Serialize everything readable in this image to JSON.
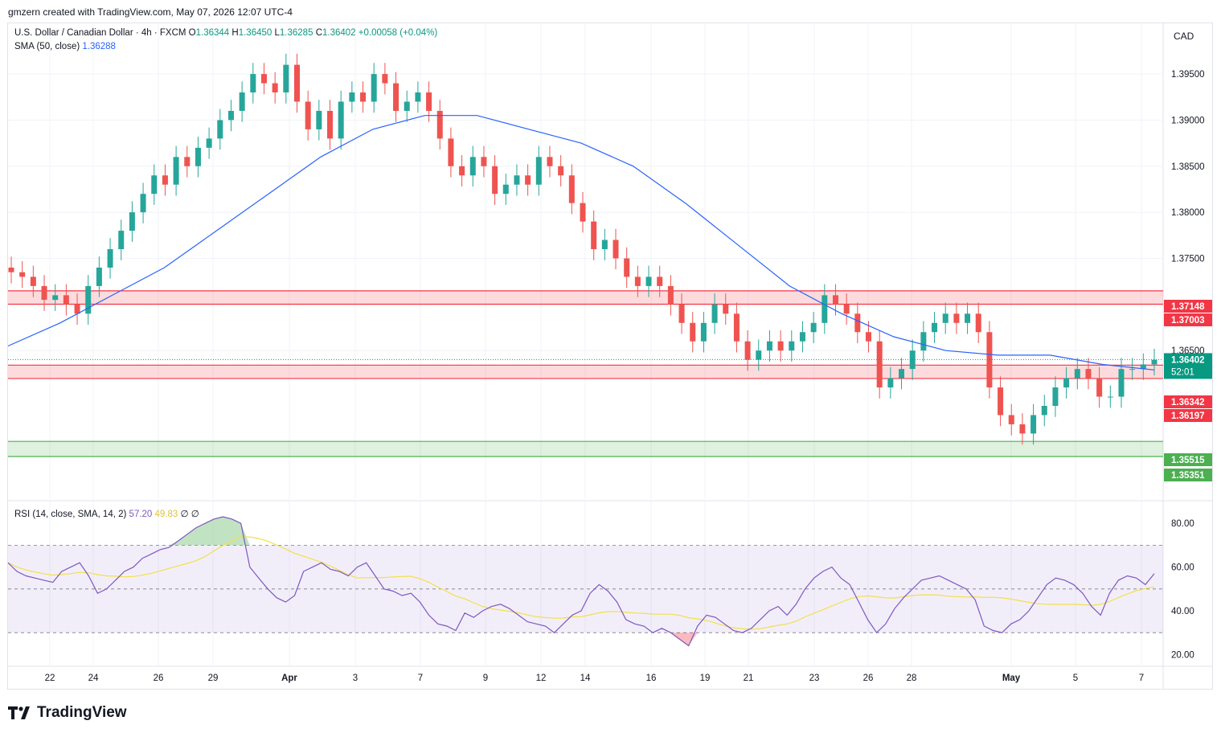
{
  "header": {
    "credit": "gmzern created with TradingView.com, May 07, 2026 12:07 UTC-4"
  },
  "legend": {
    "symbol": "U.S. Dollar / Canadian Dollar · 4h · FXCM",
    "o_label": "O",
    "o": "1.36344",
    "h_label": "H",
    "h": "1.36450",
    "l_label": "L",
    "l": "1.36285",
    "c_label": "C",
    "c": "1.36402",
    "change": "+0.00058 (+0.04%)",
    "sma_label": "SMA (50, close)",
    "sma_value": "1.36288",
    "rsi_label": "RSI (14, close, SMA, 14, 2)",
    "rsi_value": "57.20",
    "rsi_ma_value": "49.83",
    "rsi_extra1": "∅",
    "rsi_extra2": "∅"
  },
  "currency": "CAD",
  "brand": "TradingView",
  "colors": {
    "up": "#26a69a",
    "down": "#ef5350",
    "sma": "#2962ff",
    "rsi": "#7e57c2",
    "rsi_ma": "#f2e04a",
    "zone_red": "#f23645",
    "zone_green": "#4caf50"
  },
  "chart_data": {
    "type": "candlestick",
    "timeframe": "4h",
    "price_axis": {
      "ticks": [
        1.395,
        1.39,
        1.385,
        1.38,
        1.375,
        1.365
      ],
      "tick_labels": [
        "1.39500",
        "1.39000",
        "1.38500",
        "1.38000",
        "1.37500",
        "1.36500"
      ],
      "range": [
        1.3488,
        1.4005
      ]
    },
    "x_ticks": [
      "22",
      "24",
      "26",
      "29",
      "Apr",
      "3",
      "7",
      "9",
      "12",
      "14",
      "16",
      "19",
      "21",
      "23",
      "26",
      "28",
      "May",
      "5",
      "7"
    ],
    "zones": [
      {
        "kind": "resistance",
        "top": 1.37148,
        "bottom": 1.37003,
        "labels": [
          "1.37148",
          "1.37003"
        ]
      },
      {
        "kind": "resistance",
        "top": 1.36342,
        "bottom": 1.36197,
        "labels": [
          "1.36342",
          "1.36197"
        ]
      },
      {
        "kind": "support",
        "top": 1.35515,
        "bottom": 1.35351,
        "labels": [
          "1.35515",
          "1.35351"
        ]
      }
    ],
    "last_price": {
      "value": 1.36402,
      "label": "1.36402",
      "countdown": "52:01"
    },
    "close_path": [
      1.3735,
      1.373,
      1.372,
      1.3705,
      1.371,
      1.37,
      1.369,
      1.372,
      1.374,
      1.376,
      1.378,
      1.38,
      1.382,
      1.384,
      1.383,
      1.386,
      1.385,
      1.387,
      1.388,
      1.39,
      1.391,
      1.393,
      1.395,
      1.394,
      1.393,
      1.396,
      1.392,
      1.389,
      1.391,
      1.388,
      1.392,
      1.393,
      1.392,
      1.395,
      1.394,
      1.391,
      1.392,
      1.393,
      1.391,
      1.388,
      1.385,
      1.384,
      1.386,
      1.385,
      1.382,
      1.383,
      1.384,
      1.383,
      1.386,
      1.385,
      1.384,
      1.381,
      1.379,
      1.376,
      1.377,
      1.375,
      1.373,
      1.372,
      1.373,
      1.372,
      1.37,
      1.368,
      1.366,
      1.368,
      1.37,
      1.369,
      1.366,
      1.364,
      1.365,
      1.366,
      1.365,
      1.366,
      1.367,
      1.368,
      1.371,
      1.37,
      1.369,
      1.367,
      1.366,
      1.361,
      1.362,
      1.363,
      1.365,
      1.367,
      1.368,
      1.369,
      1.368,
      1.369,
      1.367,
      1.361,
      1.358,
      1.357,
      1.356,
      1.358,
      1.359,
      1.361,
      1.362,
      1.363,
      1.362,
      1.36,
      1.36,
      1.363,
      1.363,
      1.3635,
      1.364
    ],
    "sma_path": [
      1.3655,
      1.368,
      1.371,
      1.374,
      1.378,
      1.382,
      1.386,
      1.389,
      1.3905,
      1.3905,
      1.389,
      1.3875,
      1.385,
      1.381,
      1.3765,
      1.372,
      1.369,
      1.3665,
      1.365,
      1.3645,
      1.3645,
      1.3635,
      1.3629
    ],
    "rsi": {
      "axis_ticks": [
        80,
        60,
        40,
        20
      ],
      "axis_labels": [
        "80.00",
        "60.00",
        "40.00",
        "20.00"
      ],
      "upper_band": 70,
      "middle": 50,
      "lower_band": 30,
      "range": [
        15,
        90
      ],
      "values": [
        62,
        58,
        56,
        55,
        54,
        53,
        58,
        60,
        62,
        56,
        48,
        50,
        54,
        58,
        60,
        64,
        66,
        68,
        69,
        72,
        75,
        78,
        80,
        82,
        83,
        82,
        80,
        60,
        55,
        50,
        46,
        44,
        47,
        58,
        60,
        62,
        59,
        58,
        56,
        60,
        62,
        56,
        50,
        49,
        47,
        48,
        44,
        38,
        34,
        33,
        31,
        39,
        37,
        40,
        42,
        43,
        41,
        38,
        35,
        34,
        33,
        30,
        34,
        38,
        40,
        48,
        52,
        49,
        44,
        36,
        34,
        33,
        30,
        32,
        30,
        27,
        24,
        33,
        38,
        37,
        34,
        31,
        30,
        32,
        36,
        40,
        42,
        38,
        43,
        50,
        55,
        58,
        60,
        55,
        52,
        44,
        36,
        30,
        34,
        41,
        46,
        50,
        54,
        55,
        56,
        54,
        52,
        50,
        45,
        33,
        31,
        30,
        34,
        36,
        40,
        46,
        52,
        55,
        54,
        52,
        48,
        42,
        38,
        48,
        54,
        56,
        55,
        52,
        57
      ]
    }
  }
}
